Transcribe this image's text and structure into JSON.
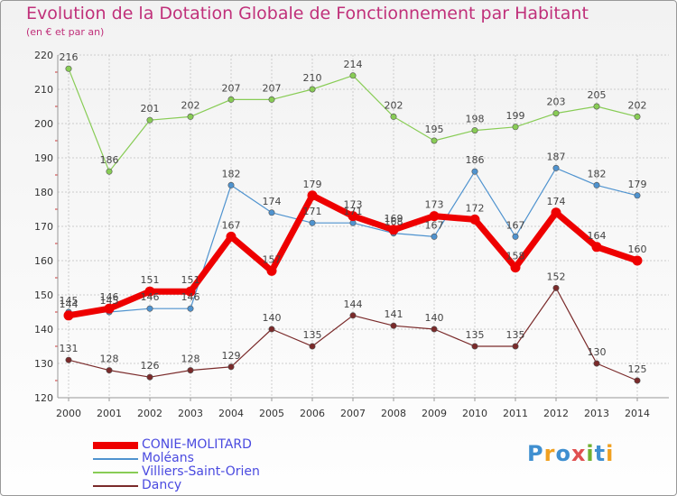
{
  "chart_data": {
    "type": "line",
    "title": "Evolution de la Dotation Globale de Fonctionnement par Habitant",
    "subtitle": "(en € et par an)",
    "ylim": [
      120,
      220
    ],
    "yticks": [
      120,
      130,
      140,
      150,
      160,
      170,
      180,
      190,
      200,
      210,
      220
    ],
    "categories": [
      "2000",
      "2001",
      "2002",
      "2003",
      "2004",
      "2005",
      "2006",
      "2007",
      "2008",
      "2009",
      "2010",
      "2011",
      "2012",
      "2013",
      "2014"
    ],
    "grid": true,
    "legend_position": "bottom-left",
    "series": [
      {
        "name": "CONIE-MOLITARD",
        "color": "#ee0000",
        "values": [
          144,
          146,
          151,
          151,
          167,
          157,
          179,
          173,
          169,
          173,
          172,
          158,
          174,
          164,
          160
        ]
      },
      {
        "name": "Moléans",
        "color": "#4f93cf",
        "values": [
          145,
          145,
          146,
          146,
          182,
          174,
          171,
          171,
          168,
          167,
          186,
          167,
          187,
          182,
          179
        ]
      },
      {
        "name": "Villiers-Saint-Orien",
        "color": "#88cc55",
        "values": [
          216,
          186,
          201,
          202,
          207,
          207,
          210,
          214,
          202,
          195,
          198,
          199,
          203,
          205,
          202
        ]
      },
      {
        "name": "Dancy",
        "color": "#7a2a2a",
        "values": [
          131,
          128,
          126,
          128,
          129,
          140,
          135,
          144,
          141,
          140,
          135,
          135,
          152,
          130,
          125
        ]
      }
    ]
  },
  "logo": {
    "p": "P",
    "r": "r",
    "o": "o",
    "x": "x",
    "i": "i",
    "t": "t",
    "i2": "i"
  }
}
